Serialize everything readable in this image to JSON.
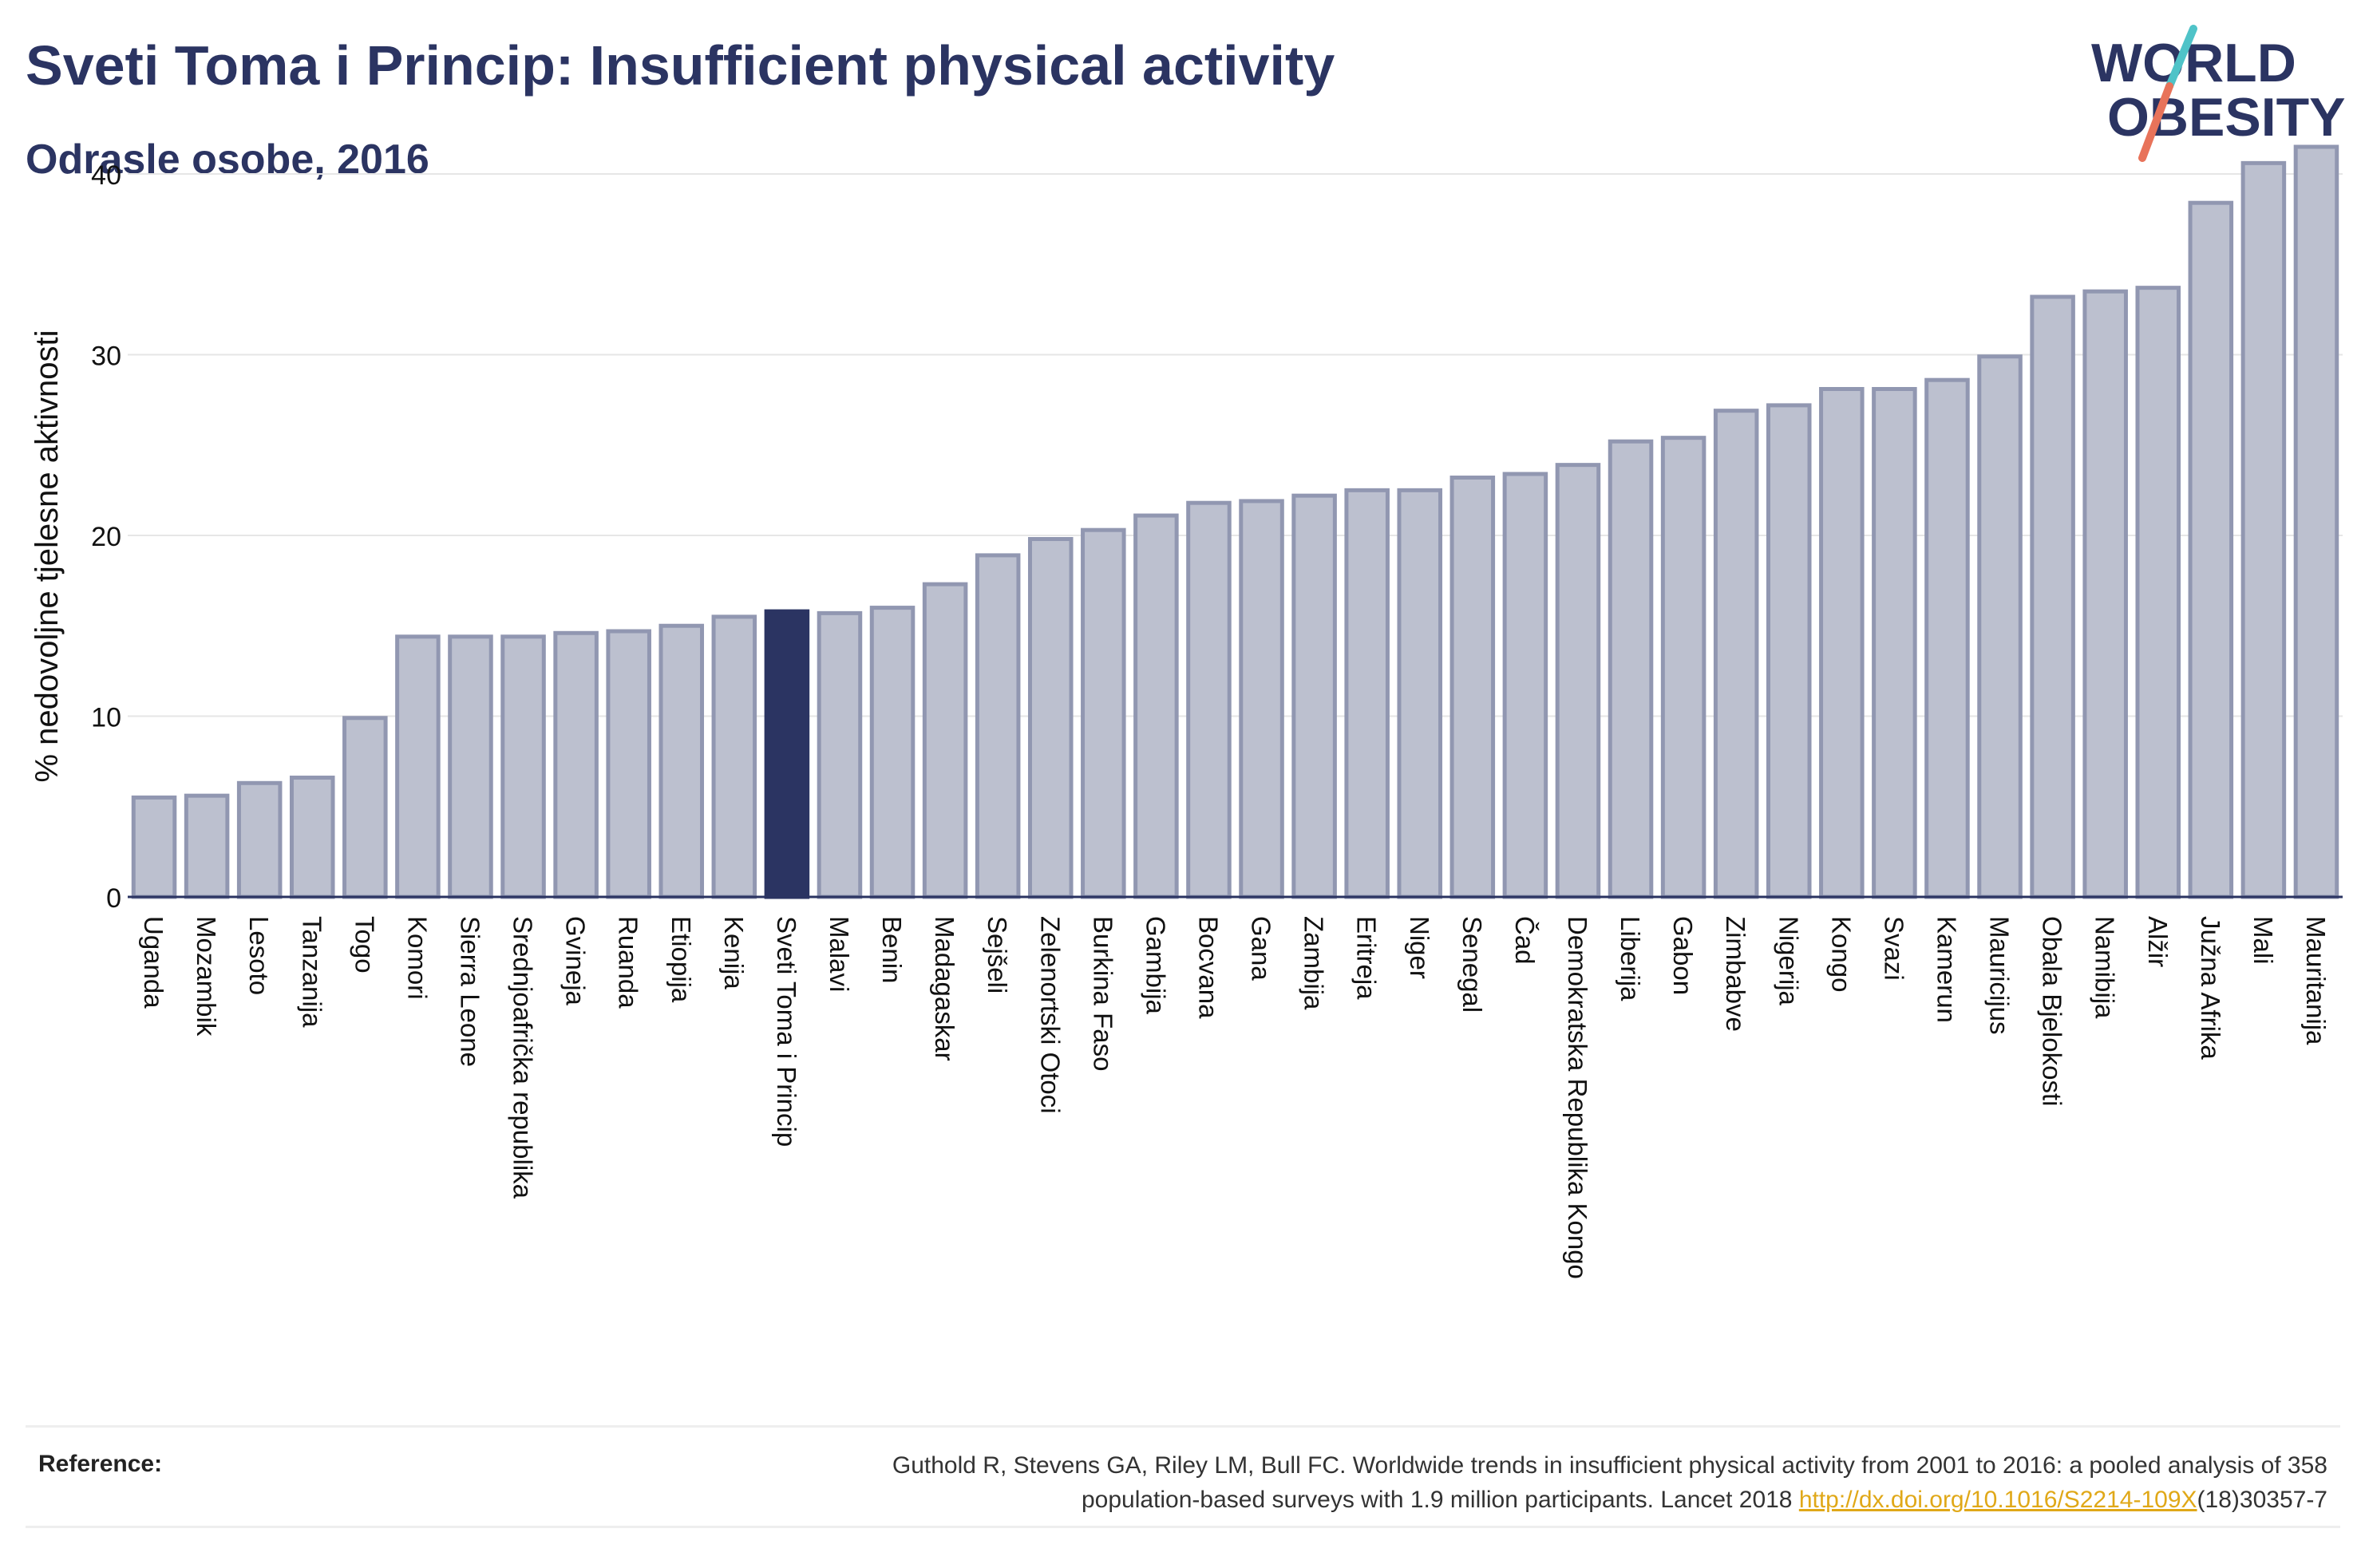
{
  "header": {
    "title": "Sveti Toma i Princip: Insufficient physical activity",
    "subtitle": "Odrasle osobe, 2016"
  },
  "logo": {
    "line1": "WORLD",
    "line2": "OBESITY",
    "text_color": "#2b3462",
    "slash_top_color": "#4fc3c8",
    "slash_bottom_color": "#e8735a"
  },
  "reference": {
    "label": "Reference:",
    "text_line1": "Guthold R, Stevens GA, Riley LM, Bull FC. Worldwide trends in insufficient physical activity from 2001 to 2016: a pooled analysis of 358",
    "text_line2_before": "population-based surveys with 1.9 million participants. Lancet 2018 ",
    "link_text": "http://dx.doi.org/10.1016/S2214-109X",
    "text_line2_after": "(18)30357-7"
  },
  "colors": {
    "bar_default": "#bcc0cf",
    "bar_default_stroke": "#9197b1",
    "bar_highlight": "#2b3462",
    "grid": "#e6e6e6",
    "axis_text": "#111111"
  },
  "chart_data": {
    "type": "bar",
    "ylabel": "% nedovoljne tjelesne aktivnosti",
    "ylim": [
      0,
      43
    ],
    "yticks": [
      0,
      10,
      20,
      30,
      40
    ],
    "grid": true,
    "highlight": "Sveti Toma i Princip",
    "categories": [
      "Uganda",
      "Mozambik",
      "Lesoto",
      "Tanzanija",
      "Togo",
      "Komori",
      "Sierra Leone",
      "Srednjoafrička republika",
      "Gvineja",
      "Ruanda",
      "Etiopija",
      "Kenija",
      "Sveti Toma i Princip",
      "Malavi",
      "Benin",
      "Madagaskar",
      "Sejšeli",
      "Zelenortski Otoci",
      "Burkina Faso",
      "Gambija",
      "Bocvana",
      "Gana",
      "Zambija",
      "Eritreja",
      "Niger",
      "Senegal",
      "Čad",
      "Demokratska Republika Kongo",
      "Liberija",
      "Gabon",
      "Zimbabve",
      "Nigerija",
      "Kongo",
      "Svazi",
      "Kamerun",
      "Mauricijus",
      "Obala Bjelokosti",
      "Namibija",
      "Alžir",
      "Južna Afrika",
      "Mali",
      "Mauritanija"
    ],
    "values": [
      5.5,
      5.6,
      6.3,
      6.6,
      9.9,
      14.4,
      14.4,
      14.4,
      14.6,
      14.7,
      15.0,
      15.5,
      15.8,
      15.7,
      16.0,
      17.3,
      18.9,
      19.8,
      20.3,
      21.1,
      21.8,
      21.9,
      22.2,
      22.5,
      22.5,
      23.2,
      23.4,
      23.9,
      25.2,
      25.4,
      26.9,
      27.2,
      28.1,
      28.1,
      28.6,
      29.9,
      33.2,
      33.5,
      33.7,
      38.4,
      40.6,
      41.5
    ]
  }
}
